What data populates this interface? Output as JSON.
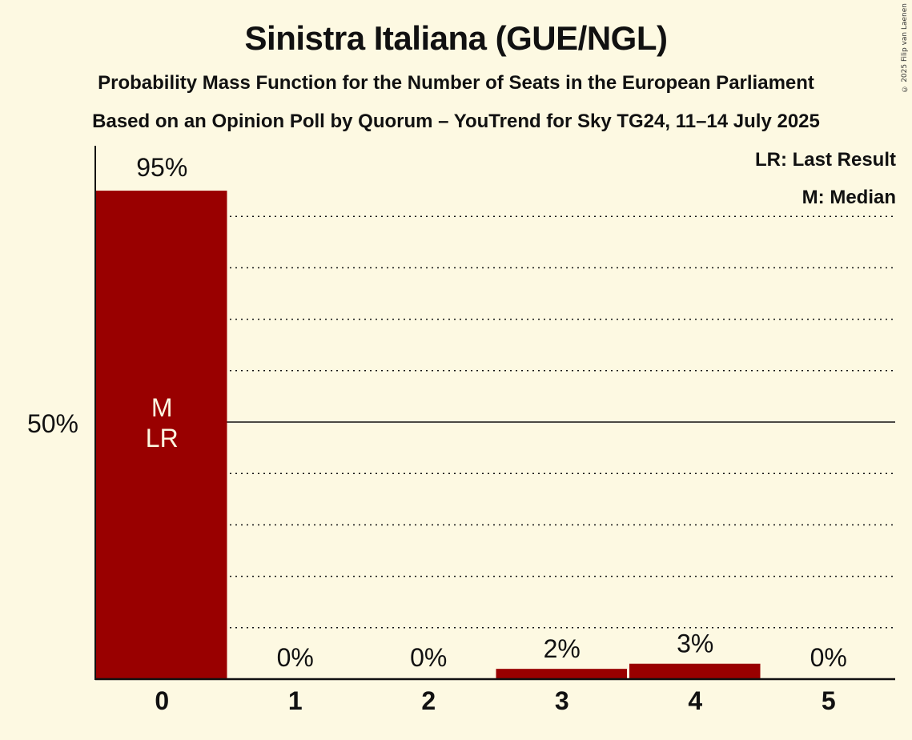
{
  "header": {
    "title": "Sinistra Italiana (GUE/NGL)",
    "subtitle": "Probability Mass Function for the Number of Seats in the European Parliament",
    "source": "Based on an Opinion Poll by Quorum – YouTrend for Sky TG24, 11–14 July 2025"
  },
  "copyright": "© 2025 Filip van Laenen",
  "legend": {
    "last_result": "LR: Last Result",
    "median": "M: Median"
  },
  "axis": {
    "y_tick_label": "50%"
  },
  "bars": [
    {
      "seats": "0",
      "value": 95,
      "label": "95%",
      "markers": [
        "M",
        "LR"
      ]
    },
    {
      "seats": "1",
      "value": 0,
      "label": "0%",
      "markers": []
    },
    {
      "seats": "2",
      "value": 0,
      "label": "0%",
      "markers": []
    },
    {
      "seats": "3",
      "value": 2,
      "label": "2%",
      "markers": []
    },
    {
      "seats": "4",
      "value": 3,
      "label": "3%",
      "markers": []
    },
    {
      "seats": "5",
      "value": 0,
      "label": "0%",
      "markers": []
    }
  ],
  "colors": {
    "background": "#fdf9e2",
    "bar": "#990000",
    "marker_text": "#fdf9e2"
  },
  "chart_data": {
    "type": "bar",
    "title": "Sinistra Italiana (GUE/NGL)",
    "subtitle": "Probability Mass Function for the Number of Seats in the European Parliament",
    "caption": "Based on an Opinion Poll by Quorum – YouTrend for Sky TG24, 11–14 July 2025",
    "categories": [
      "0",
      "1",
      "2",
      "3",
      "4",
      "5"
    ],
    "values": [
      95,
      0,
      0,
      2,
      3,
      0
    ],
    "data_labels": [
      "95%",
      "0%",
      "0%",
      "2%",
      "3%",
      "0%"
    ],
    "xlabel": "",
    "ylabel": "",
    "ylim": [
      0,
      100
    ],
    "y_ticks": [
      50
    ],
    "y_tick_labels": [
      "50%"
    ],
    "grid": "dotted lines every 10%, solid line at 50%",
    "annotations": [
      {
        "category": "0",
        "text": "M",
        "meaning": "Median"
      },
      {
        "category": "0",
        "text": "LR",
        "meaning": "Last Result"
      }
    ],
    "legend": [
      "LR: Last Result",
      "M: Median"
    ],
    "legend_position": "top-right"
  }
}
